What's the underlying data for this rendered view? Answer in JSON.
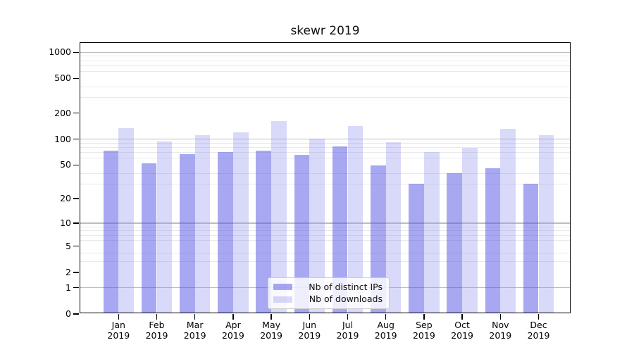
{
  "chart_data": {
    "type": "bar",
    "title": "skewr 2019",
    "categories": [
      "Jan 2019",
      "Feb 2019",
      "Mar 2019",
      "Apr 2019",
      "May 2019",
      "Jun 2019",
      "Jul 2019",
      "Aug 2019",
      "Sep 2019",
      "Oct 2019",
      "Nov 2019",
      "Dec 2019"
    ],
    "series": [
      {
        "name": "Nb of distinct IPs",
        "values": [
          71,
          50,
          65,
          68,
          71,
          63,
          80,
          48,
          29,
          39,
          44,
          29
        ]
      },
      {
        "name": "Nb of downloads",
        "values": [
          130,
          91,
          108,
          115,
          155,
          98,
          137,
          88,
          68,
          76,
          127,
          107
        ]
      }
    ],
    "xlabel": "",
    "ylabel": "",
    "yscale": "log1p",
    "ylim": [
      0,
      1280
    ],
    "y_ticks": [
      1000,
      500,
      200,
      100,
      50,
      20,
      10,
      5,
      2,
      1,
      0
    ],
    "y_major_gridlines": [
      1,
      10,
      100,
      1000
    ],
    "y_minor_gridlines": [
      3,
      4,
      6,
      7,
      8,
      9,
      30,
      40,
      60,
      70,
      80,
      90,
      300,
      400,
      600,
      700,
      800,
      900
    ],
    "grid": true,
    "legend_position": "inside lower center"
  },
  "colors": {
    "ips_bar": "rgba(81,81,229,0.5)",
    "downloads_bar": "rgba(146,146,238,0.35)",
    "grid_major": "#bdbdbd",
    "grid_minor": "#e9e9e9",
    "axis_frame": "#000000",
    "legend_border": "#cccccc",
    "background": "#ffffff"
  }
}
